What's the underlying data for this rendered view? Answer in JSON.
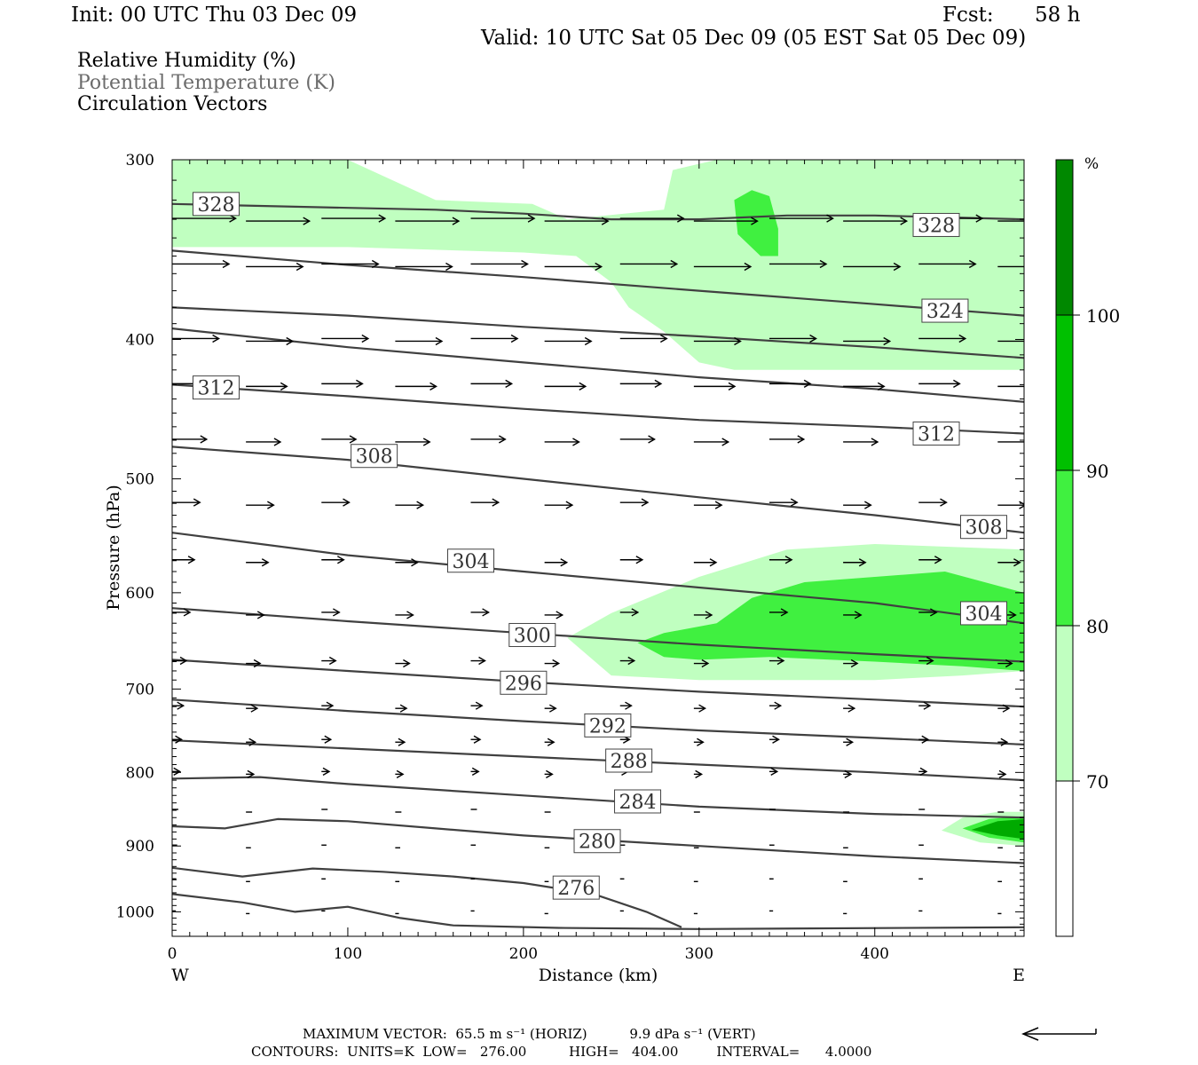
{
  "header": {
    "init": "Init: 00 UTC Thu 03 Dec 09",
    "fcst_label": "Fcst:",
    "fcst_value": "58 h",
    "valid": "Valid: 10 UTC Sat 05 Dec 09 (05 EST Sat 05 Dec 09)",
    "legend_rh": "Relative Humidity (%)",
    "legend_theta": "Potential Temperature (K)",
    "legend_vectors": "Circulation Vectors"
  },
  "chart_data": {
    "type": "cross-section",
    "xlabel": "Distance (km)",
    "ylabel": "Pressure (hPa)",
    "xlim": [
      0,
      485
    ],
    "ylim": [
      1040,
      300
    ],
    "y_scale": "log-pressure",
    "x_ticks": [
      "0",
      "100",
      "200",
      "300",
      "400"
    ],
    "y_ticks": [
      "300",
      "400",
      "500",
      "600",
      "700",
      "800",
      "900",
      "1000"
    ],
    "x_end_left": "W",
    "x_end_right": "E",
    "colorbar": {
      "unit": "%",
      "levels": [
        "70",
        "80",
        "90",
        "100"
      ],
      "colors": [
        "#ffffff",
        "#c0ffc0",
        "#40f040",
        "#00c000",
        "#008800"
      ]
    },
    "contour_labels": [
      "328",
      "324",
      "312",
      "308",
      "304",
      "300",
      "296",
      "292",
      "288",
      "284",
      "280",
      "276"
    ],
    "isentropes": [
      {
        "theta": 328,
        "points": [
          [
            0,
            322
          ],
          [
            50,
            323
          ],
          [
            100,
            324
          ],
          [
            150,
            325
          ],
          [
            200,
            327
          ],
          [
            250,
            330
          ],
          [
            300,
            330
          ],
          [
            350,
            328
          ],
          [
            400,
            328
          ],
          [
            485,
            330
          ]
        ]
      },
      {
        "theta": 324,
        "points": [
          [
            0,
            347
          ],
          [
            100,
            355
          ],
          [
            200,
            362
          ],
          [
            300,
            370
          ],
          [
            400,
            378
          ],
          [
            485,
            385
          ]
        ]
      },
      {
        "theta": 320,
        "points": [
          [
            0,
            380
          ],
          [
            100,
            385
          ],
          [
            200,
            392
          ],
          [
            300,
            398
          ],
          [
            400,
            405
          ],
          [
            485,
            412
          ]
        ]
      },
      {
        "theta": 316,
        "points": [
          [
            0,
            393
          ],
          [
            100,
            405
          ],
          [
            200,
            415
          ],
          [
            300,
            425
          ],
          [
            400,
            433
          ],
          [
            485,
            442
          ]
        ]
      },
      {
        "theta": 312,
        "points": [
          [
            0,
            430
          ],
          [
            100,
            438
          ],
          [
            200,
            447
          ],
          [
            300,
            455
          ],
          [
            400,
            460
          ],
          [
            485,
            465
          ]
        ]
      },
      {
        "theta": 308,
        "points": [
          [
            0,
            475
          ],
          [
            100,
            485
          ],
          [
            200,
            500
          ],
          [
            300,
            515
          ],
          [
            400,
            530
          ],
          [
            485,
            545
          ]
        ]
      },
      {
        "theta": 304,
        "points": [
          [
            0,
            545
          ],
          [
            100,
            565
          ],
          [
            200,
            580
          ],
          [
            300,
            595
          ],
          [
            400,
            610
          ],
          [
            485,
            630
          ]
        ]
      },
      {
        "theta": 300,
        "points": [
          [
            0,
            615
          ],
          [
            100,
            628
          ],
          [
            200,
            640
          ],
          [
            300,
            652
          ],
          [
            400,
            662
          ],
          [
            485,
            670
          ]
        ]
      },
      {
        "theta": 296,
        "points": [
          [
            0,
            668
          ],
          [
            100,
            680
          ],
          [
            200,
            692
          ],
          [
            300,
            703
          ],
          [
            400,
            712
          ],
          [
            485,
            720
          ]
        ]
      },
      {
        "theta": 292,
        "points": [
          [
            0,
            712
          ],
          [
            100,
            725
          ],
          [
            200,
            737
          ],
          [
            300,
            748
          ],
          [
            400,
            757
          ],
          [
            485,
            765
          ]
        ]
      },
      {
        "theta": 288,
        "points": [
          [
            0,
            760
          ],
          [
            100,
            770
          ],
          [
            200,
            780
          ],
          [
            300,
            790
          ],
          [
            400,
            800
          ],
          [
            485,
            810
          ]
        ]
      },
      {
        "theta": 284,
        "points": [
          [
            0,
            808
          ],
          [
            50,
            806
          ],
          [
            100,
            815
          ],
          [
            200,
            830
          ],
          [
            300,
            845
          ],
          [
            400,
            855
          ],
          [
            485,
            860
          ]
        ]
      },
      {
        "theta": 280,
        "points": [
          [
            0,
            872
          ],
          [
            30,
            875
          ],
          [
            60,
            862
          ],
          [
            100,
            865
          ],
          [
            150,
            875
          ],
          [
            200,
            885
          ],
          [
            300,
            900
          ],
          [
            400,
            915
          ],
          [
            485,
            925
          ]
        ]
      },
      {
        "theta": 276,
        "points": [
          [
            0,
            932
          ],
          [
            40,
            945
          ],
          [
            80,
            933
          ],
          [
            120,
            938
          ],
          [
            160,
            945
          ],
          [
            200,
            955
          ],
          [
            240,
            972
          ],
          [
            270,
            1000
          ],
          [
            290,
            1025
          ]
        ]
      },
      {
        "theta": 272,
        "points": [
          [
            0,
            972
          ],
          [
            40,
            985
          ],
          [
            70,
            1000
          ],
          [
            100,
            992
          ],
          [
            130,
            1010
          ],
          [
            160,
            1022
          ],
          [
            220,
            1026
          ],
          [
            300,
            1028
          ],
          [
            485,
            1025
          ]
        ]
      }
    ],
    "rh_regions": [
      {
        "level": "70-80",
        "polygon": [
          [
            0,
            300
          ],
          [
            100,
            300
          ],
          [
            150,
            320
          ],
          [
            205,
            322
          ],
          [
            225,
            330
          ],
          [
            280,
            325
          ],
          [
            285,
            305
          ],
          [
            310,
            300
          ],
          [
            485,
            300
          ],
          [
            485,
            420
          ],
          [
            420,
            420
          ],
          [
            350,
            420
          ],
          [
            320,
            420
          ],
          [
            300,
            415
          ],
          [
            280,
            395
          ],
          [
            260,
            380
          ],
          [
            250,
            365
          ],
          [
            230,
            350
          ],
          [
            200,
            348
          ],
          [
            100,
            345
          ],
          [
            0,
            345
          ]
        ]
      },
      {
        "level": "70-80",
        "polygon": [
          [
            225,
            645
          ],
          [
            250,
            620
          ],
          [
            300,
            585
          ],
          [
            350,
            560
          ],
          [
            400,
            555
          ],
          [
            485,
            560
          ],
          [
            485,
            680
          ],
          [
            450,
            685
          ],
          [
            400,
            690
          ],
          [
            350,
            690
          ],
          [
            300,
            690
          ],
          [
            250,
            685
          ]
        ]
      },
      {
        "level": "80-90",
        "polygon": [
          [
            265,
            650
          ],
          [
            280,
            640
          ],
          [
            310,
            630
          ],
          [
            330,
            605
          ],
          [
            360,
            590
          ],
          [
            400,
            585
          ],
          [
            440,
            580
          ],
          [
            485,
            600
          ],
          [
            485,
            680
          ],
          [
            450,
            675
          ],
          [
            400,
            670
          ],
          [
            340,
            665
          ],
          [
            300,
            668
          ],
          [
            280,
            665
          ]
        ]
      },
      {
        "level": "70-80",
        "polygon": [
          [
            438,
            878
          ],
          [
            450,
            860
          ],
          [
            470,
            852
          ],
          [
            485,
            852
          ],
          [
            485,
            900
          ],
          [
            460,
            895
          ]
        ]
      },
      {
        "level": "80-90",
        "polygon": [
          [
            450,
            875
          ],
          [
            465,
            862
          ],
          [
            485,
            858
          ],
          [
            485,
            895
          ],
          [
            465,
            888
          ]
        ]
      },
      {
        "level": "90-100",
        "polygon": [
          [
            455,
            877
          ],
          [
            470,
            865
          ],
          [
            485,
            862
          ],
          [
            485,
            890
          ],
          [
            470,
            885
          ]
        ]
      },
      {
        "level": "80-90",
        "polygon": [
          [
            320,
            320
          ],
          [
            330,
            315
          ],
          [
            340,
            318
          ],
          [
            345,
            335
          ],
          [
            345,
            350
          ],
          [
            335,
            350
          ],
          [
            322,
            338
          ]
        ]
      }
    ],
    "vector_rows": [
      330,
      355,
      400,
      430,
      470,
      520,
      570,
      620,
      670,
      720,
      760,
      800,
      850,
      900,
      950,
      1000
    ]
  },
  "footer": {
    "max_vector": "MAXIMUM VECTOR:  65.5 m s⁻¹ (HORIZ)          9.9 dPa s⁻¹ (VERT)",
    "contours": "CONTOURS:  UNITS=K  LOW=   276.00          HIGH=   404.00         INTERVAL=      4.0000"
  }
}
